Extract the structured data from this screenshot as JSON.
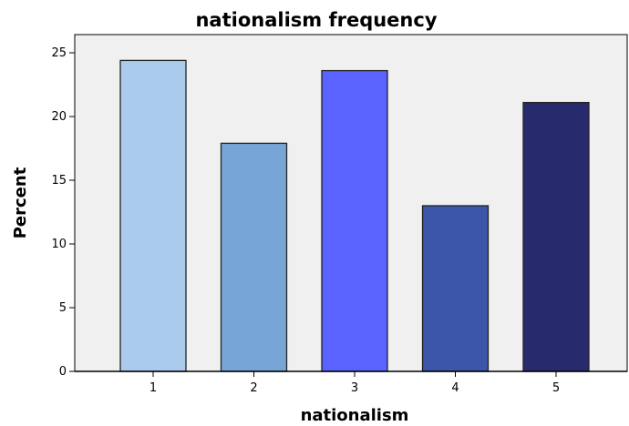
{
  "chart_data": {
    "type": "bar",
    "title": "nationalism frequency",
    "xlabel": "nationalism",
    "ylabel": "Percent",
    "categories": [
      "1",
      "2",
      "3",
      "4",
      "5"
    ],
    "values": [
      24.4,
      17.9,
      23.6,
      13.0,
      21.1
    ],
    "colors": [
      "#aacbec",
      "#77a6d6",
      "#5a62ff",
      "#3b55a8",
      "#282a6e"
    ],
    "ylim": [
      0,
      25
    ],
    "yticks": [
      "0",
      "5",
      "10",
      "15",
      "20",
      "25"
    ],
    "grid": false,
    "plot_background": "#f0f0f0",
    "bar_outline": "#222222"
  }
}
